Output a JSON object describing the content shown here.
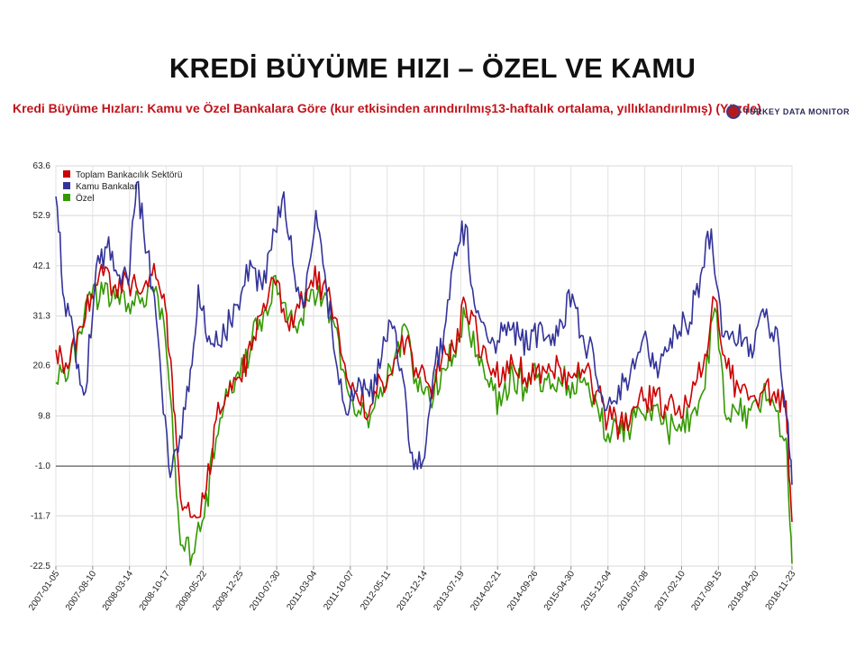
{
  "slide": {
    "title": "KREDİ BÜYÜME HIZI – ÖZEL VE KAMU"
  },
  "brand": {
    "logo_text": "TÜRKEY DATA MONITOR"
  },
  "chart_data": {
    "type": "line",
    "title": "Kredi Büyüme Hızları: Kamu ve Özel Bankalara Göre (kur etkisinden arındırılmış13-haftalık ortalama, yıllıklandırılmış) (Yüzde)",
    "xlabel": "",
    "ylabel": "",
    "y_ticks": [
      "63.6",
      "52.9",
      "42.1",
      "31.3",
      "20.6",
      "9.8",
      "-1.0",
      "-11.7",
      "-22.5"
    ],
    "ylim": [
      -22.5,
      63.6
    ],
    "x_ticks": [
      "2007-01-05",
      "2007-08-10",
      "2008-03-14",
      "2008-10-17",
      "2009-05-22",
      "2009-12-25",
      "2010-07-30",
      "2011-03-04",
      "2011-10-07",
      "2012-05-11",
      "2012-12-14",
      "2013-07-19",
      "2014-02-21",
      "2014-09-26",
      "2015-04-30",
      "2015-12-04",
      "2016-07-08",
      "2017-02-10",
      "2017-09-15",
      "2018-04-20",
      "2018-11-23"
    ],
    "xlim": [
      "2007-01-05",
      "2018-11-23"
    ],
    "grid": true,
    "reference_line": -1.0,
    "legend_position": "top-left",
    "colors": {
      "Toplam Bankacılık Sektörü": "#cc0000",
      "Kamu Bankaları": "#33339a",
      "Özel": "#339900"
    },
    "series": [
      {
        "name": "Toplam Bankacılık Sektörü",
        "x": [
          "2007-01-05",
          "2007-03-16",
          "2007-05-25",
          "2007-08-03",
          "2007-10-12",
          "2007-12-21",
          "2008-03-07",
          "2008-05-16",
          "2008-07-25",
          "2008-10-03",
          "2008-11-21",
          "2009-01-09",
          "2009-03-20",
          "2009-05-29",
          "2009-08-07",
          "2009-10-16",
          "2009-12-25",
          "2010-03-05",
          "2010-05-14",
          "2010-07-23",
          "2010-10-01",
          "2010-12-10",
          "2011-02-18",
          "2011-04-29",
          "2011-07-08",
          "2011-09-16",
          "2011-11-25",
          "2012-02-03",
          "2012-04-13",
          "2012-06-22",
          "2012-08-31",
          "2012-11-09",
          "2013-01-18",
          "2013-03-29",
          "2013-06-07",
          "2013-08-16",
          "2013-10-25",
          "2014-01-03",
          "2014-03-14",
          "2014-05-23",
          "2014-08-01",
          "2014-10-10",
          "2014-12-19",
          "2015-02-27",
          "2015-05-08",
          "2015-07-17",
          "2015-09-25",
          "2015-12-04",
          "2016-02-12",
          "2016-04-22",
          "2016-07-01",
          "2016-09-09",
          "2016-11-18",
          "2017-01-27",
          "2017-04-07",
          "2017-06-16",
          "2017-08-25",
          "2017-11-03",
          "2018-01-12",
          "2018-03-23",
          "2018-06-01",
          "2018-08-10",
          "2018-10-19",
          "2018-11-23"
        ],
        "values": [
          24,
          20,
          29,
          36,
          40,
          38,
          39,
          36,
          40,
          36,
          18,
          -8,
          -12,
          -8,
          9,
          14,
          18,
          24,
          34,
          38,
          30,
          33,
          39,
          38,
          31,
          18,
          13,
          12,
          17,
          22,
          26,
          18,
          16,
          22,
          24,
          34,
          27,
          20,
          17,
          21,
          18,
          20,
          21,
          20,
          18,
          19,
          15,
          9,
          8,
          11,
          13,
          14,
          11,
          12,
          14,
          20,
          35,
          20,
          16,
          14,
          15,
          15,
          13,
          -13
        ]
      },
      {
        "name": "Kamu Bankaları",
        "x": [
          "2007-01-05",
          "2007-02-23",
          "2007-04-27",
          "2007-06-29",
          "2007-08-31",
          "2007-11-02",
          "2008-01-04",
          "2008-03-07",
          "2008-04-25",
          "2008-06-27",
          "2008-08-29",
          "2008-10-31",
          "2008-12-26",
          "2009-02-27",
          "2009-04-24",
          "2009-06-26",
          "2009-08-28",
          "2009-10-30",
          "2010-01-01",
          "2010-03-05",
          "2010-05-07",
          "2010-07-09",
          "2010-09-10",
          "2010-11-12",
          "2011-01-14",
          "2011-03-18",
          "2011-05-20",
          "2011-07-22",
          "2011-09-23",
          "2011-11-25",
          "2012-01-27",
          "2012-03-30",
          "2012-06-01",
          "2012-08-03",
          "2012-10-05",
          "2012-12-07",
          "2013-02-08",
          "2013-04-12",
          "2013-06-14",
          "2013-08-16",
          "2013-10-18",
          "2013-12-20",
          "2014-02-21",
          "2014-04-25",
          "2014-06-27",
          "2014-08-29",
          "2014-10-31",
          "2015-01-02",
          "2015-03-06",
          "2015-05-08",
          "2015-07-10",
          "2015-09-11",
          "2015-11-13",
          "2016-01-15",
          "2016-03-18",
          "2016-05-20",
          "2016-07-22",
          "2016-09-23",
          "2016-11-25",
          "2017-01-27",
          "2017-03-31",
          "2017-06-02",
          "2017-08-04",
          "2017-10-06",
          "2017-12-08",
          "2018-02-09",
          "2018-04-13",
          "2018-06-15",
          "2018-08-17",
          "2018-10-19",
          "2018-11-23"
        ],
        "values": [
          57,
          35,
          25,
          15,
          42,
          46,
          40,
          38,
          60,
          45,
          27,
          -1,
          2,
          15,
          38,
          27,
          25,
          30,
          36,
          42,
          37,
          50,
          58,
          40,
          35,
          54,
          37,
          20,
          10,
          18,
          14,
          20,
          30,
          20,
          2,
          0,
          19,
          28,
          45,
          51,
          32,
          27,
          26,
          30,
          27,
          24,
          30,
          25,
          30,
          36,
          27,
          23,
          11,
          13,
          18,
          22,
          26,
          18,
          24,
          28,
          30,
          40,
          50,
          27,
          28,
          26,
          24,
          31,
          29,
          10,
          -5
        ]
      },
      {
        "name": "Özel",
        "x": [
          "2007-01-05",
          "2007-03-16",
          "2007-05-25",
          "2007-08-03",
          "2007-10-12",
          "2007-12-21",
          "2008-03-07",
          "2008-05-16",
          "2008-07-25",
          "2008-10-03",
          "2008-11-21",
          "2009-01-09",
          "2009-03-20",
          "2009-05-29",
          "2009-08-07",
          "2009-10-16",
          "2009-12-25",
          "2010-03-05",
          "2010-05-14",
          "2010-07-23",
          "2010-10-01",
          "2010-12-10",
          "2011-02-18",
          "2011-04-29",
          "2011-07-08",
          "2011-09-16",
          "2011-11-25",
          "2012-02-03",
          "2012-04-13",
          "2012-06-22",
          "2012-08-31",
          "2012-11-09",
          "2013-01-18",
          "2013-03-29",
          "2013-06-07",
          "2013-08-16",
          "2013-10-25",
          "2014-01-03",
          "2014-03-14",
          "2014-05-23",
          "2014-08-01",
          "2014-10-10",
          "2014-12-19",
          "2015-02-27",
          "2015-05-08",
          "2015-07-17",
          "2015-09-25",
          "2015-12-04",
          "2016-02-12",
          "2016-04-22",
          "2016-07-01",
          "2016-09-09",
          "2016-11-18",
          "2017-01-27",
          "2017-04-07",
          "2017-06-16",
          "2017-08-25",
          "2017-11-03",
          "2018-01-12",
          "2018-03-23",
          "2018-06-01",
          "2018-08-10",
          "2018-10-19",
          "2018-11-23"
        ],
        "values": [
          17,
          18,
          28,
          35,
          36,
          35,
          34,
          34,
          37,
          30,
          10,
          -18,
          -20,
          -12,
          5,
          14,
          18,
          26,
          32,
          40,
          30,
          30,
          37,
          35,
          29,
          16,
          11,
          10,
          14,
          22,
          29,
          15,
          13,
          20,
          23,
          31,
          23,
          16,
          12,
          19,
          16,
          18,
          19,
          17,
          17,
          18,
          13,
          6,
          6,
          8,
          10,
          12,
          7,
          8,
          10,
          15,
          33,
          9,
          10,
          11,
          14,
          12,
          5,
          -22
        ]
      }
    ]
  }
}
